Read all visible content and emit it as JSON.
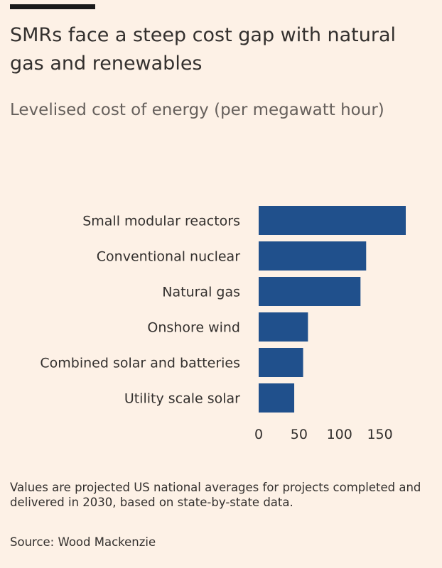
{
  "header": {
    "title": "SMRs face a steep cost gap with natural gas and renewables",
    "subtitle": "Levelised cost of energy (per megawatt hour)"
  },
  "footer": {
    "note": "Values are projected US national averages for projects completed and delivered in 2030, based on state-by-state data.",
    "source": "Source: Wood Mackenzie"
  },
  "colors": {
    "bar": "#20508c",
    "background": "#fdf1e6",
    "text": "#33302e"
  },
  "chart_data": {
    "type": "bar",
    "orientation": "horizontal",
    "title": "SMRs face a steep cost gap with natural gas and renewables",
    "subtitle": "Levelised cost of energy (per megawatt hour)",
    "categories": [
      "Small modular reactors",
      "Conventional nuclear",
      "Natural gas",
      "Onshore wind",
      "Combined solar and batteries",
      "Utility scale solar"
    ],
    "values": [
      182,
      133,
      126,
      61,
      55,
      44
    ],
    "xlim": [
      0,
      182
    ],
    "xticks": [
      0,
      50,
      100,
      150
    ],
    "xlabel": "",
    "ylabel": "",
    "grid": false,
    "legend": "none"
  }
}
